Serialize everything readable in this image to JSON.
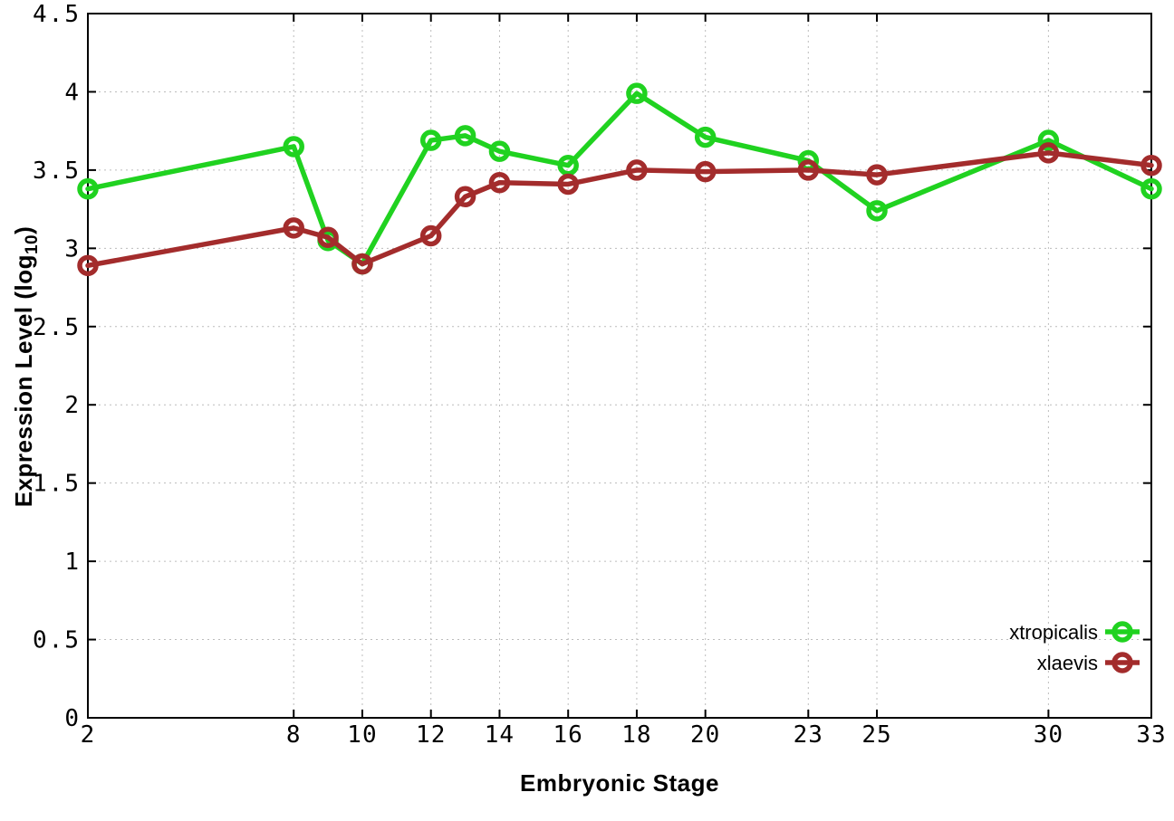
{
  "chart_data": {
    "type": "line",
    "title": "",
    "xlabel": "Embryonic Stage",
    "ylabel": {
      "prefix": "Expression Level (log",
      "sub": "10",
      "suffix": ")"
    },
    "x": [
      2,
      8,
      9,
      10,
      12,
      13,
      14,
      16,
      18,
      20,
      23,
      25,
      30,
      33
    ],
    "series": [
      {
        "name": "xtropicalis",
        "color": "#20d220",
        "values": [
          3.38,
          3.65,
          3.05,
          2.9,
          3.69,
          3.72,
          3.62,
          3.53,
          3.99,
          3.71,
          3.56,
          3.24,
          3.69,
          3.38
        ]
      },
      {
        "name": "xlaevis",
        "color": "#a32c2c",
        "values": [
          2.89,
          3.13,
          3.07,
          2.9,
          3.08,
          3.33,
          3.42,
          3.41,
          3.5,
          3.49,
          3.5,
          3.47,
          3.61,
          3.53
        ]
      }
    ],
    "x_tick_values": [
      2,
      8,
      10,
      12,
      14,
      16,
      18,
      20,
      23,
      25,
      30,
      33
    ],
    "x_tick_labels": [
      "2",
      "8",
      "10",
      "12",
      "14",
      "16",
      "18",
      "20",
      "23",
      "25",
      "30",
      "33"
    ],
    "y_tick_values": [
      0,
      0.5,
      1,
      1.5,
      2,
      2.5,
      3,
      3.5,
      4,
      4.5
    ],
    "y_tick_labels": [
      "0",
      "0.5",
      "1",
      "1.5",
      "2",
      "2.5",
      "3",
      "3.5",
      "4",
      "4.5"
    ],
    "xlim": [
      2,
      33
    ],
    "ylim": [
      0,
      4.5
    ],
    "grid": true,
    "legend_position": "inside-bottom-right",
    "colors": {
      "axis": "#000000",
      "grid": "#bcbcbc",
      "background": "#ffffff",
      "text": "#000000"
    }
  }
}
